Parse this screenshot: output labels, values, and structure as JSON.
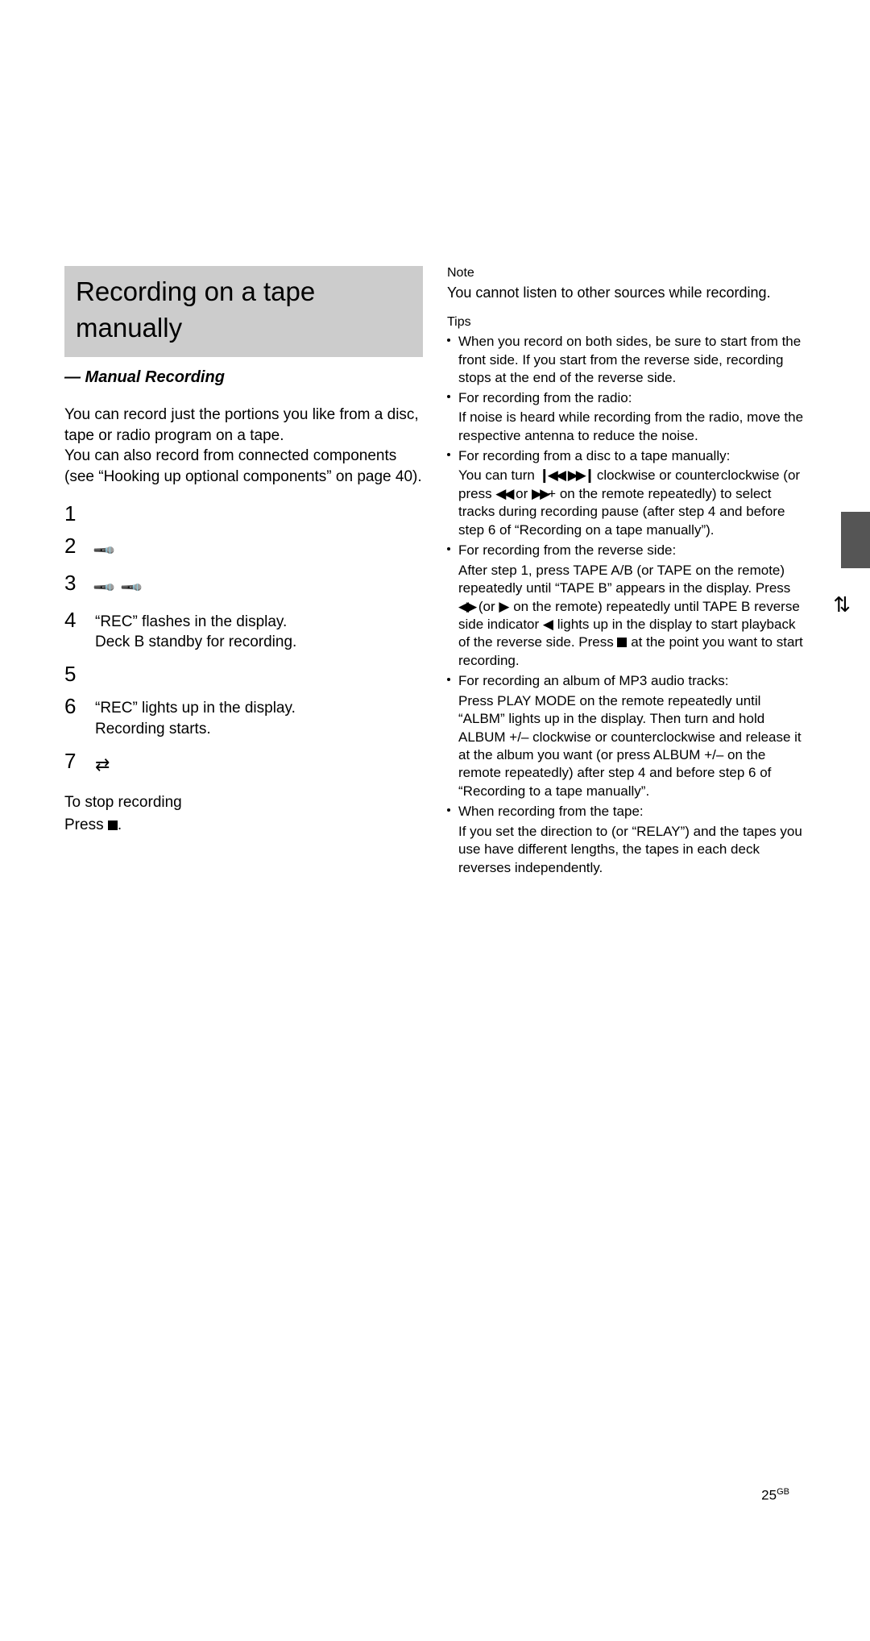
{
  "left": {
    "title_l1": "Recording on a tape",
    "title_l2": "manually",
    "subtitle": "— Manual Recording",
    "intro": "You can record just the portions you like from a disc, tape or radio program on a tape.\nYou can also record from connected components (see “Hooking up optional components” on page 40).",
    "steps": {
      "s1": {
        "num": "1",
        "body": ""
      },
      "s2": {
        "num": "2",
        "body": ""
      },
      "s3": {
        "num": "3",
        "body": ""
      },
      "s4": {
        "num": "4",
        "body": "“REC” flashes in the display.\nDeck B standby for recording."
      },
      "s5": {
        "num": "5",
        "body": ""
      },
      "s6": {
        "num": "6",
        "body": "“REC” lights up in the display.\nRecording starts."
      },
      "s7": {
        "num": "7",
        "body": ""
      }
    },
    "stop_h": "To stop recording",
    "stop_p_pre": "Press ",
    "stop_p_post": "."
  },
  "right": {
    "note_h": "Note",
    "note_p": "You cannot listen to other sources while recording.",
    "tips_h": "Tips",
    "tip1": "When you record on both sides, be sure to start from the front side. If you start from the reverse side, recording stops at the end of the reverse side.",
    "tip2_h": "For recording from the radio:",
    "tip2": "If noise is heard while recording from the radio, move the respective antenna to reduce the noise.",
    "tip3_h": "For recording from a disc to a tape manually:",
    "tip3_a": "You can turn ",
    "tip3_b": " clockwise or counterclockwise (or press ",
    "tip3_c": " or ",
    "tip3_d": "+ on the remote repeatedly) to select tracks during recording pause (after step 4 and before step 6 of “Recording on a tape manually”).",
    "tip4_h": "For recording from the reverse side:",
    "tip4_a": "After step 1, press TAPE A/B (or TAPE on the remote) repeatedly until “TAPE B” appears in the display. Press ",
    "tip4_b": " (or ",
    "tip4_c": " on the remote) repeatedly until TAPE B reverse side indicator ",
    "tip4_d": " lights up in the display to start playback of the reverse side. Press ",
    "tip4_e": " at the point you want to start recording.",
    "tip5_h": "For recording an album of MP3 audio tracks:",
    "tip5": "Press PLAY MODE on the remote repeatedly until “ALBM” lights up in the display. Then turn and hold ALBUM +/– clockwise or counterclockwise and release it at the album you want (or press ALBUM +/– on the remote repeatedly) after step 4 and before step 6 of “Recording to a tape manually”.",
    "tip6_h": "When recording from the tape:",
    "tip6_a": "If you set the direction to ",
    "tip6_b": " (or “RELAY”) and the tapes you use have different lengths, the tapes in each deck reverses independently."
  },
  "page_number": "25",
  "page_suffix": "GB",
  "icons": {
    "rew": "◀◀",
    "ffw": "▶▶",
    "skip_back": "❙◀◀",
    "skip_fwd": "▶▶❙",
    "playrev": "◀▶",
    "play": "▶",
    "rev_ind": "◀",
    "swap": "⇄",
    "updown": "⇅"
  },
  "colors": {
    "title_bg": "#cccccc",
    "side_tab": "#555555",
    "text": "#000000",
    "bg": "#ffffff"
  }
}
